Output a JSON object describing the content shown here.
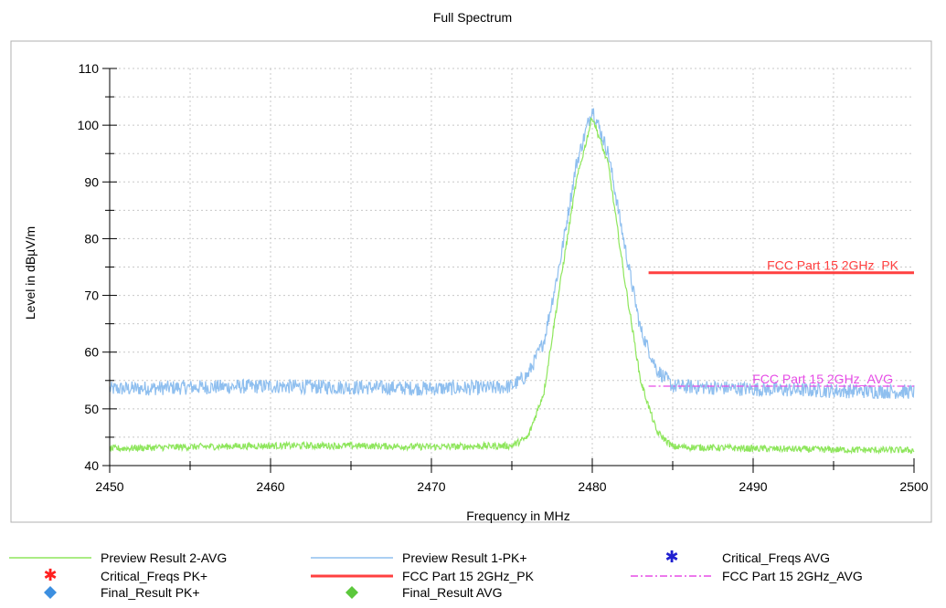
{
  "chart_data": {
    "type": "line",
    "title": "Full Spectrum",
    "xlabel": "Frequency in MHz",
    "ylabel": "Level in dBµV/m",
    "xlim": [
      2450,
      2500
    ],
    "ylim": [
      40,
      110
    ],
    "x_ticks": [
      "2450",
      "2460",
      "2470",
      "2480",
      "2490",
      "2500"
    ],
    "y_ticks": [
      "40",
      "50",
      "60",
      "70",
      "80",
      "90",
      "100",
      "110"
    ],
    "grid": true,
    "series": [
      {
        "name": "Preview Result 1-PK+",
        "color": "#8fbfef",
        "x": [
          2450,
          2455,
          2460,
          2465,
          2470,
          2474,
          2475,
          2476,
          2477,
          2478,
          2479,
          2480,
          2481,
          2482,
          2483,
          2484,
          2485,
          2490,
          2495,
          2500
        ],
        "y": [
          53.5,
          53.8,
          54,
          53.8,
          53.6,
          53.7,
          54,
          56,
          62,
          76,
          93,
          103,
          95,
          79,
          64,
          57,
          54,
          53.5,
          53.2,
          53
        ]
      },
      {
        "name": "Preview Result 2-AVG",
        "color": "#8ee65c",
        "x": [
          2450,
          2455,
          2460,
          2465,
          2470,
          2475,
          2476,
          2477,
          2478,
          2479,
          2480,
          2481,
          2482,
          2483,
          2484,
          2485,
          2490,
          2495,
          2500
        ],
        "y": [
          43,
          43.3,
          43.5,
          43.5,
          43.3,
          43.5,
          45,
          53,
          72,
          90,
          101.5,
          93,
          73,
          55,
          46,
          43.3,
          43,
          42.8,
          42.7
        ]
      }
    ],
    "limit_lines": [
      {
        "name": "FCC Part 15 2GHz_PK",
        "label": "FCC Part 15 2GHz_PK",
        "color": "#ff4040",
        "x": [
          2483.5,
          2500
        ],
        "y": [
          74,
          74
        ]
      },
      {
        "name": "FCC Part 15 2GHz_AVG",
        "label": "FCC Part 15 2GHz_AVG",
        "color": "#e64ce6",
        "x": [
          2483.5,
          2500
        ],
        "y": [
          54,
          54
        ]
      }
    ],
    "legend": {
      "placement": "bottom",
      "entries": [
        {
          "label": "Preview Result 2-AVG",
          "marker": "line",
          "color": "#8ee65c"
        },
        {
          "label": "Preview Result 1-PK+",
          "marker": "line",
          "color": "#8fbfef"
        },
        {
          "label": "Critical_Freqs AVG",
          "marker": "asterisk",
          "color": "#2020d0"
        },
        {
          "label": "Critical_Freqs PK+",
          "marker": "asterisk",
          "color": "#ff2020"
        },
        {
          "label": "FCC Part 15 2GHz_PK",
          "marker": "line",
          "color": "#ff4040"
        },
        {
          "label": "FCC Part 15 2GHz_AVG",
          "marker": "dashdot",
          "color": "#e64ce6"
        },
        {
          "label": "Final_Result PK+",
          "marker": "diamond",
          "color": "#3c8fe0"
        },
        {
          "label": "Final_Result AVG",
          "marker": "diamond",
          "color": "#5cc83c"
        }
      ]
    }
  }
}
